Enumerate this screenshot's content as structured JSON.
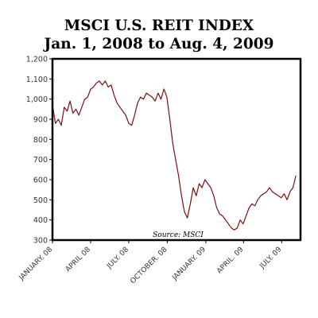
{
  "chart_data": {
    "type": "line",
    "title": "MSCI U.S. REIT INDEX",
    "subtitle": "Jan. 1, 2008 to Aug. 4, 2009",
    "annotation": "Source: MSCI",
    "ylim": [
      300,
      1200
    ],
    "yticks": [
      300,
      400,
      500,
      600,
      700,
      800,
      900,
      1000,
      1100,
      1200
    ],
    "ytick_labels": [
      "300",
      "400",
      "500",
      "600",
      "700",
      "800",
      "900",
      "1,000",
      "1,100",
      "1,200"
    ],
    "xlim": [
      "2008-01-01",
      "2009-08-15"
    ],
    "xticks": [
      {
        "date": "2008-01-01",
        "label": "JANUARY. 08"
      },
      {
        "date": "2008-04-01",
        "label": "APRIL 08"
      },
      {
        "date": "2008-07-01",
        "label": "JULY. 08"
      },
      {
        "date": "2008-10-01",
        "label": "OCTOBER. 08"
      },
      {
        "date": "2009-01-01",
        "label": "JANUARY. 09"
      },
      {
        "date": "2009-04-01",
        "label": "APRIL. 09"
      },
      {
        "date": "2009-07-01",
        "label": "JULY. 09"
      }
    ],
    "grid": false,
    "line_color": "#7a1010",
    "series": [
      {
        "x": [
          "2008-01-01",
          "2008-01-08",
          "2008-01-15",
          "2008-01-22",
          "2008-01-29",
          "2008-02-05",
          "2008-02-12",
          "2008-02-19",
          "2008-02-26",
          "2008-03-04",
          "2008-03-11",
          "2008-03-18",
          "2008-03-25",
          "2008-04-01",
          "2008-04-08",
          "2008-04-15",
          "2008-04-22",
          "2008-04-29",
          "2008-05-06",
          "2008-05-13",
          "2008-05-20",
          "2008-05-27",
          "2008-06-03",
          "2008-06-10",
          "2008-06-17",
          "2008-06-24",
          "2008-07-01",
          "2008-07-08",
          "2008-07-15",
          "2008-07-22",
          "2008-07-29",
          "2008-08-05",
          "2008-08-12",
          "2008-08-19",
          "2008-08-26",
          "2008-09-02",
          "2008-09-09",
          "2008-09-16",
          "2008-09-23",
          "2008-09-30",
          "2008-10-07",
          "2008-10-14",
          "2008-10-21",
          "2008-10-28",
          "2008-11-04",
          "2008-11-11",
          "2008-11-18",
          "2008-11-25",
          "2008-12-02",
          "2008-12-09",
          "2008-12-16",
          "2008-12-23",
          "2008-12-30",
          "2009-01-06",
          "2009-01-13",
          "2009-01-20",
          "2009-01-27",
          "2009-02-03",
          "2009-02-10",
          "2009-02-17",
          "2009-02-24",
          "2009-03-03",
          "2009-03-10",
          "2009-03-17",
          "2009-03-24",
          "2009-03-31",
          "2009-04-07",
          "2009-04-14",
          "2009-04-21",
          "2009-04-28",
          "2009-05-05",
          "2009-05-12",
          "2009-05-19",
          "2009-05-26",
          "2009-06-02",
          "2009-06-09",
          "2009-06-16",
          "2009-06-23",
          "2009-06-30",
          "2009-07-07",
          "2009-07-14",
          "2009-07-21",
          "2009-07-28",
          "2009-08-04"
        ],
        "values": [
          970,
          880,
          900,
          870,
          960,
          940,
          990,
          930,
          950,
          920,
          960,
          1000,
          1010,
          1050,
          1060,
          1080,
          1090,
          1070,
          1090,
          1060,
          1070,
          1020,
          980,
          960,
          940,
          920,
          880,
          870,
          920,
          980,
          1010,
          1000,
          1030,
          1020,
          1010,
          990,
          1030,
          1000,
          1050,
          1010,
          900,
          780,
          700,
          620,
          520,
          440,
          410,
          480,
          560,
          520,
          580,
          560,
          600,
          580,
          560,
          520,
          460,
          430,
          420,
          400,
          380,
          360,
          350,
          360,
          400,
          380,
          420,
          460,
          480,
          470,
          500,
          520,
          530,
          540,
          560,
          540,
          530,
          520,
          510,
          530,
          500,
          540,
          560,
          620
        ]
      }
    ]
  }
}
